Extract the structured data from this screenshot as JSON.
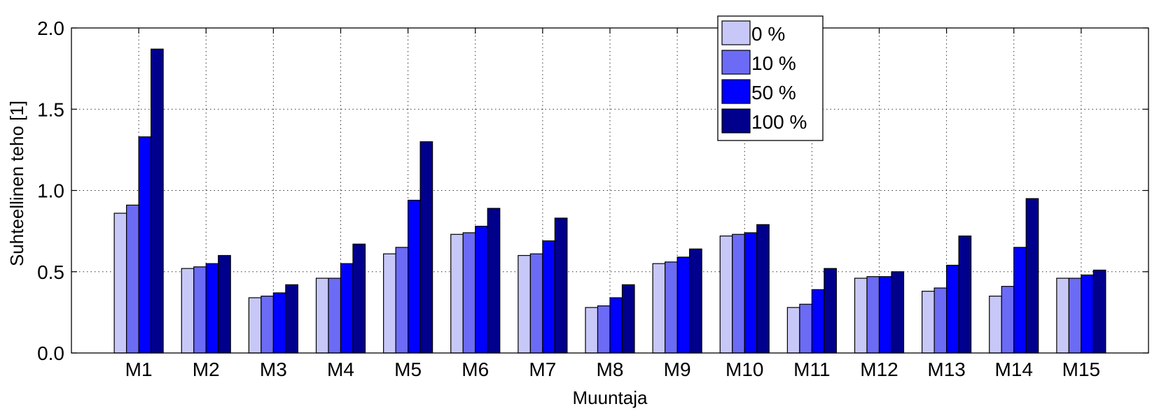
{
  "chart_data": {
    "type": "bar",
    "xlabel": "Muuntaja",
    "ylabel": "Suhteellinen teho [1]",
    "ylim": [
      0,
      2.0
    ],
    "yticks": [
      "0.0",
      "0.5",
      "1.0",
      "1.5",
      "2.0"
    ],
    "grid": true,
    "legend_position": "top-right",
    "categories": [
      "M1",
      "M2",
      "M3",
      "M4",
      "M5",
      "M6",
      "M7",
      "M8",
      "M9",
      "M10",
      "M11",
      "M12",
      "M13",
      "M14",
      "M15"
    ],
    "series": [
      {
        "name": "0 %",
        "color": "#c8c8f8",
        "values": [
          0.86,
          0.52,
          0.34,
          0.46,
          0.61,
          0.73,
          0.6,
          0.28,
          0.55,
          0.72,
          0.28,
          0.46,
          0.38,
          0.35,
          0.46
        ]
      },
      {
        "name": "10 %",
        "color": "#6b6bf5",
        "values": [
          0.91,
          0.53,
          0.35,
          0.46,
          0.65,
          0.74,
          0.61,
          0.29,
          0.56,
          0.73,
          0.3,
          0.47,
          0.4,
          0.41,
          0.46
        ]
      },
      {
        "name": "50 %",
        "color": "#0000ff",
        "values": [
          1.33,
          0.55,
          0.37,
          0.55,
          0.94,
          0.78,
          0.69,
          0.34,
          0.59,
          0.74,
          0.39,
          0.47,
          0.54,
          0.65,
          0.48
        ]
      },
      {
        "name": "100 %",
        "color": "#00008c",
        "values": [
          1.87,
          0.6,
          0.42,
          0.67,
          1.3,
          0.89,
          0.83,
          0.42,
          0.64,
          0.79,
          0.52,
          0.5,
          0.72,
          0.95,
          0.51
        ]
      }
    ]
  }
}
